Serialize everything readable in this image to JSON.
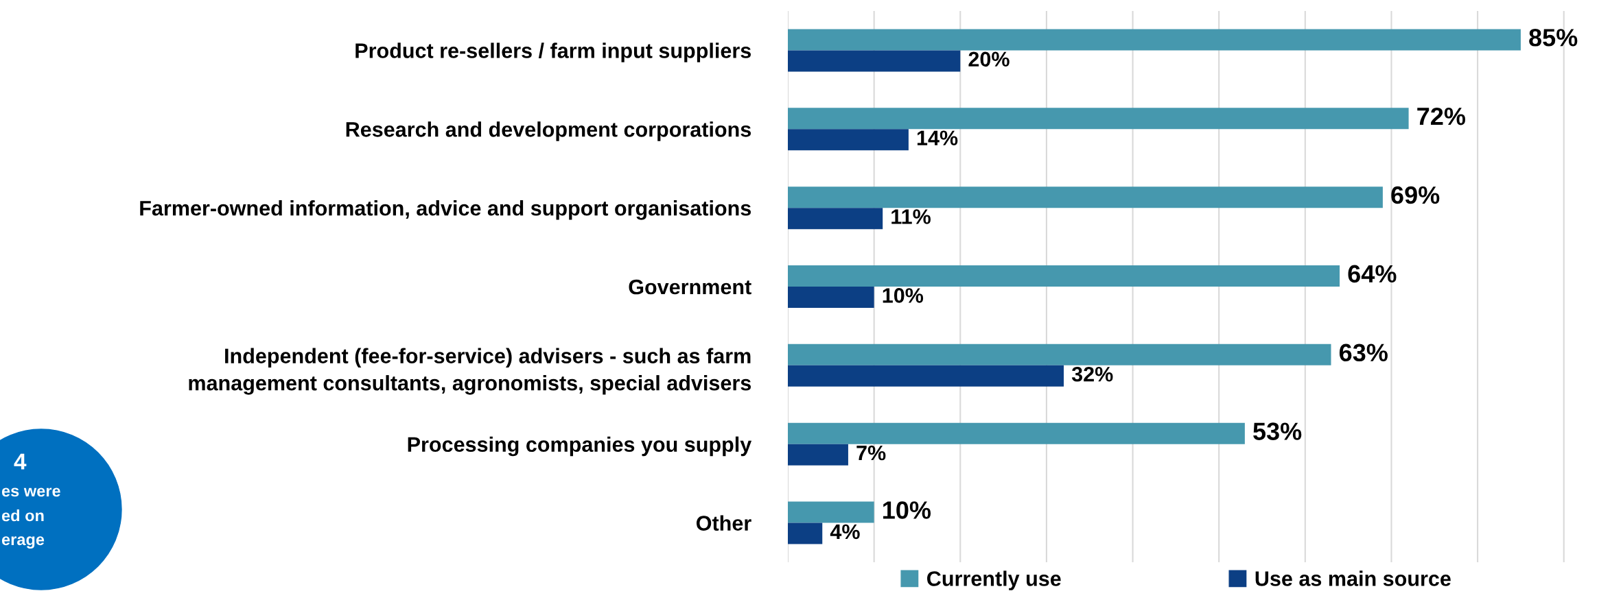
{
  "chart_data": {
    "type": "bar",
    "orientation": "horizontal",
    "categories": [
      "Product re-sellers / farm input suppliers",
      "Research and development corporations",
      "Farmer-owned information, advice and support organisations",
      "Government",
      "Independent (fee-for-service) advisers - such as farm\nmanagement consultants, agronomists, special advisers",
      "Processing companies you supply",
      "Other"
    ],
    "series": [
      {
        "name": "Currently use",
        "color": "#4698ae",
        "values": [
          85,
          72,
          69,
          64,
          63,
          53,
          10
        ],
        "value_labels": [
          "85%",
          "72%",
          "69%",
          "64%",
          "63%",
          "53%",
          "10%"
        ]
      },
      {
        "name": "Use as main source",
        "color": "#0c3f84",
        "values": [
          20,
          14,
          11,
          10,
          32,
          7,
          4
        ],
        "value_labels": [
          "20%",
          "14%",
          "11%",
          "10%",
          "32%",
          "7%",
          "4%"
        ]
      }
    ],
    "tick_labels": "y",
    "grid": "x",
    "legend": "bottom",
    "annotations": [
      "4",
      "es were",
      "ed on",
      "erage"
    ]
  }
}
